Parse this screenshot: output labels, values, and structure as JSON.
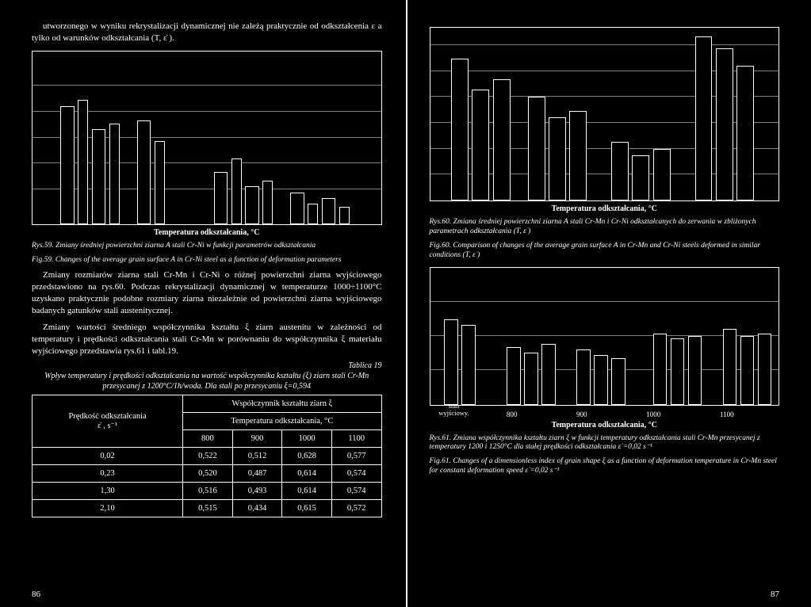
{
  "colors": {
    "bg": "#000000",
    "fg": "#ffffff"
  },
  "left": {
    "para1": "utworzonego w wyniku rekrystalizacji dynamicznej nie zależą praktycznie od odkształcenia ε a tylko od warunków odkształcania (T, ε̇ ).",
    "fig59": {
      "axis_title": "Temperatura odkształcania, °C",
      "caption_pl": "Rys.59. Zmiany średniej powierzchni ziarna A stali Cr-Ni w funkcji parametrów odkształcania",
      "caption_en": "Fig.59. Changes of the average grain surface A in Cr-Ni steel as a function of deformation parameters",
      "gridlines_pct": [
        20,
        35,
        50,
        65,
        80
      ],
      "bars": [
        {
          "left_pct": 8,
          "width_pct": 4,
          "height_pct": 68
        },
        {
          "left_pct": 13,
          "width_pct": 3,
          "height_pct": 72
        },
        {
          "left_pct": 17,
          "width_pct": 4,
          "height_pct": 55
        },
        {
          "left_pct": 22,
          "width_pct": 3,
          "height_pct": 58
        },
        {
          "left_pct": 30,
          "width_pct": 4,
          "height_pct": 60
        },
        {
          "left_pct": 35,
          "width_pct": 3,
          "height_pct": 48
        },
        {
          "left_pct": 52,
          "width_pct": 4,
          "height_pct": 30
        },
        {
          "left_pct": 57,
          "width_pct": 3,
          "height_pct": 38
        },
        {
          "left_pct": 61,
          "width_pct": 4,
          "height_pct": 22
        },
        {
          "left_pct": 66,
          "width_pct": 3,
          "height_pct": 25
        },
        {
          "left_pct": 74,
          "width_pct": 4,
          "height_pct": 18
        },
        {
          "left_pct": 79,
          "width_pct": 3,
          "height_pct": 12
        },
        {
          "left_pct": 83,
          "width_pct": 4,
          "height_pct": 15
        },
        {
          "left_pct": 88,
          "width_pct": 3,
          "height_pct": 10
        }
      ]
    },
    "para2": "Zmiany rozmiarów ziarna stali Cr-Mn i Cr-Ni o różnej powierzchni ziarna wyjściowego przedstawiono na rys.60. Podczas rekrystalizacji dynamicznej w temperaturze 1000÷1100°C uzyskano praktycznie podobne rozmiary ziarna niezależnie od powierzchni ziarna wyjściowego badanych gatunków stali austenitycznej.",
    "para3": "Zmiany wartości średniego współczynnika kształtu ξ ziarn austenitu w zależności od temperatury i prędkości odkształcania stali Cr-Mn w porównaniu do współczynnika ξ materiału wyjściowego przedstawia rys.61 i tabl.19.",
    "table": {
      "table_num": "Tablica 19",
      "title": "Wpływ temperatury i prędkości odkształcania na wartość współczynnika kształtu (ξ) ziarn stali Cr-Mn przesycanej z 1200°C/1h/woda. Dla stali po przesycaniu ξ=0,594",
      "rowhead1": "Prędkość odkształcania",
      "rowhead2": "ε̇ , s⁻¹",
      "colhead_main": "Współczynnik kształtu ziarn ξ",
      "colhead_sub": "Temperatura odkształcania, °C",
      "temps": [
        "800",
        "900",
        "1000",
        "1100"
      ],
      "rows": [
        {
          "rate": "0,02",
          "vals": [
            "0,522",
            "0,512",
            "0,628",
            "0,577"
          ]
        },
        {
          "rate": "0,23",
          "vals": [
            "0,520",
            "0,487",
            "0,614",
            "0,574"
          ]
        },
        {
          "rate": "1,30",
          "vals": [
            "0,516",
            "0,493",
            "0,614",
            "0,574"
          ]
        },
        {
          "rate": "2,10",
          "vals": [
            "0,515",
            "0,434",
            "0,615",
            "0,572"
          ]
        }
      ]
    },
    "pagenum": "86"
  },
  "right": {
    "fig60": {
      "axis_title": "Temperatura odkształcania, °C",
      "caption_pl": "Rys.60. Zmiana średniej powierzchni ziarna A stali Cr-Mn i Cr-Ni odkształcanych do zerwania w zbliżonych parametrach odkształcania (T, ε̇ )",
      "caption_en": "Fig.60. Comparison of changes of the average grain surface A in Cr-Mn and Cr-Ni steels deformed in similar conditions (T, ε̇ )",
      "gridlines_pct": [
        15,
        30,
        45,
        60,
        75,
        90
      ],
      "bars": [
        {
          "left_pct": 6,
          "width_pct": 5,
          "height_pct": 82
        },
        {
          "left_pct": 12,
          "width_pct": 5,
          "height_pct": 64
        },
        {
          "left_pct": 18,
          "width_pct": 5,
          "height_pct": 70
        },
        {
          "left_pct": 28,
          "width_pct": 5,
          "height_pct": 60
        },
        {
          "left_pct": 34,
          "width_pct": 5,
          "height_pct": 48
        },
        {
          "left_pct": 40,
          "width_pct": 5,
          "height_pct": 52
        },
        {
          "left_pct": 52,
          "width_pct": 5,
          "height_pct": 34
        },
        {
          "left_pct": 58,
          "width_pct": 5,
          "height_pct": 26
        },
        {
          "left_pct": 64,
          "width_pct": 5,
          "height_pct": 30
        },
        {
          "left_pct": 76,
          "width_pct": 5,
          "height_pct": 95
        },
        {
          "left_pct": 82,
          "width_pct": 5,
          "height_pct": 88
        },
        {
          "left_pct": 88,
          "width_pct": 5,
          "height_pct": 78
        }
      ]
    },
    "fig61": {
      "axis_title": "Temperatura odkształcania, °C",
      "xticks": [
        "800",
        "900",
        "1000",
        "1100"
      ],
      "stan": "stan wyjściowy.",
      "caption_pl": "Rys.61. Zmiana współczynnika kształtu ziarn ξ w funkcji temperatury odkształcania stali Cr-Mn przesycanej z temperatury 1200 i 1250°C dla stałej prędkości odkształcania ε̇ =0,02 s⁻¹",
      "caption_en": "Fig.61. Changes of a dimensionless index of grain shape ξ as a function of deformation temperature in Cr-Mn steel for constant deformation speed ε̇ =0,02 s⁻¹",
      "gridlines_pct": [
        25,
        50,
        75
      ],
      "bars": [
        {
          "left_pct": 4,
          "width_pct": 4,
          "height_pct": 62
        },
        {
          "left_pct": 9,
          "width_pct": 4,
          "height_pct": 58
        },
        {
          "left_pct": 22,
          "width_pct": 4,
          "height_pct": 42
        },
        {
          "left_pct": 27,
          "width_pct": 4,
          "height_pct": 38
        },
        {
          "left_pct": 32,
          "width_pct": 4,
          "height_pct": 44
        },
        {
          "left_pct": 42,
          "width_pct": 4,
          "height_pct": 40
        },
        {
          "left_pct": 47,
          "width_pct": 4,
          "height_pct": 36
        },
        {
          "left_pct": 52,
          "width_pct": 4,
          "height_pct": 34
        },
        {
          "left_pct": 64,
          "width_pct": 4,
          "height_pct": 52
        },
        {
          "left_pct": 69,
          "width_pct": 4,
          "height_pct": 48
        },
        {
          "left_pct": 74,
          "width_pct": 4,
          "height_pct": 50
        },
        {
          "left_pct": 84,
          "width_pct": 4,
          "height_pct": 55
        },
        {
          "left_pct": 89,
          "width_pct": 4,
          "height_pct": 50
        },
        {
          "left_pct": 94,
          "width_pct": 4,
          "height_pct": 52
        }
      ]
    },
    "pagenum": "87"
  }
}
